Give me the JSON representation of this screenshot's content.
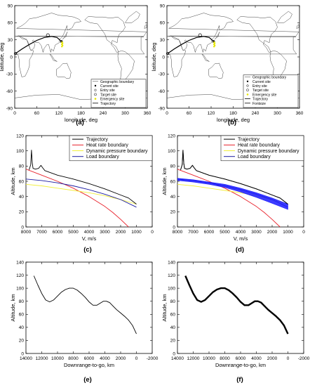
{
  "chart_data": [
    {
      "panel_label": "(a)",
      "type": "map",
      "xlabel": "longitude, deg",
      "ylabel": "latitude, deg",
      "xlim": [
        0,
        360
      ],
      "ylim": [
        -90,
        90
      ],
      "xticks": [
        "0",
        "60",
        "120",
        "180",
        "240",
        "300",
        "360"
      ],
      "yticks": [
        "-90",
        "-60",
        "-30",
        "0",
        "30",
        "60",
        "90"
      ],
      "legend": {
        "position": "bottom-right",
        "entries": [
          "Geographic boundary",
          "Current site",
          "Entry site",
          "Target site",
          "Emergency site",
          "Trajectory"
        ]
      },
      "markers": {
        "entry_site": {
          "x": 2,
          "y": 6
        },
        "target_site": {
          "x": 90,
          "y": 38
        },
        "current_site": {
          "x": 127,
          "y": 27
        },
        "emergency_site": {
          "x": 128,
          "y": 26
        }
      },
      "trajectory": {
        "x": [
          2,
          20,
          40,
          60,
          80,
          100,
          115,
          127
        ],
        "y": [
          6,
          14,
          22,
          29,
          34,
          36,
          34,
          27
        ]
      }
    },
    {
      "panel_label": "(b)",
      "type": "map",
      "xlabel": "longitude, deg",
      "ylabel": "latitude, deg",
      "xlim": [
        0,
        360
      ],
      "ylim": [
        -90,
        90
      ],
      "xticks": [
        "0",
        "60",
        "120",
        "180",
        "240",
        "300",
        "360"
      ],
      "yticks": [
        "-90",
        "-60",
        "-30",
        "0",
        "30",
        "60",
        "90"
      ],
      "legend": {
        "position": "bottom-right",
        "entries": [
          "Geographic boundary",
          "Current site",
          "Entry site",
          "Target site",
          "Emergency site",
          "Trajectory",
          "Fontsize"
        ]
      },
      "markers": {
        "entry_site": {
          "x": 2,
          "y": 6
        },
        "target_site": {
          "x": 90,
          "y": 38
        },
        "current_site": {
          "x": 127,
          "y": 27
        },
        "emergency_site": {
          "x": 128,
          "y": 26
        }
      },
      "trajectory": {
        "x": [
          2,
          20,
          40,
          60,
          80,
          100,
          115,
          127
        ],
        "y": [
          6,
          14,
          22,
          29,
          34,
          36,
          34,
          27
        ]
      }
    },
    {
      "panel_label": "(c)",
      "type": "line",
      "xlabel": "V, m/s",
      "ylabel": "Altitude, km",
      "xlim": [
        8000,
        0
      ],
      "ylim": [
        0,
        120
      ],
      "xticks": [
        "8000",
        "7000",
        "6000",
        "5000",
        "4000",
        "3000",
        "2000",
        "1000",
        "0"
      ],
      "yticks": [
        "0",
        "20",
        "40",
        "60",
        "80",
        "100",
        "120"
      ],
      "legend_position": "top-right",
      "series": [
        {
          "name": "Trajectory",
          "color": "#000000",
          "x": [
            7800,
            7700,
            7650,
            7600,
            7550,
            7400,
            7200,
            7050,
            6950,
            6800,
            6000,
            5000,
            4000,
            3000,
            2000,
            1500,
            1000
          ],
          "y": [
            75,
            82,
            101,
            84,
            77,
            76,
            77,
            81,
            78,
            74,
            68,
            63,
            57,
            50,
            42,
            38,
            30
          ]
        },
        {
          "name": "Heat rate boundary",
          "color": "#e8202a",
          "x": [
            8000,
            7000,
            6000,
            5000,
            4000,
            3000,
            2500,
            2000,
            1500
          ],
          "y": [
            76,
            68,
            60,
            51,
            40,
            27,
            19,
            10,
            0
          ]
        },
        {
          "name": "Dynamic pressure boundary",
          "color": "#f2ef3a",
          "x": [
            8000,
            7000,
            6000,
            5000,
            4000,
            3000,
            2000,
            1000
          ],
          "y": [
            56,
            54,
            51,
            48,
            45,
            41,
            36,
            30
          ]
        },
        {
          "name": "Load boundary",
          "color": "#1a1aa0",
          "x": [
            8000,
            7000,
            6000,
            5000,
            4000,
            3000,
            2000,
            1000
          ],
          "y": [
            63,
            61,
            58,
            54,
            49,
            43,
            36,
            26
          ]
        }
      ]
    },
    {
      "panel_label": "(d)",
      "type": "line",
      "xlabel": "V, m/s",
      "ylabel": "Altitude, km",
      "xlim": [
        8000,
        0
      ],
      "ylim": [
        0,
        120
      ],
      "xticks": [
        "8000",
        "7000",
        "6000",
        "5000",
        "4000",
        "3000",
        "2000",
        "1000",
        "0"
      ],
      "yticks": [
        "0",
        "20",
        "40",
        "60",
        "80",
        "100",
        "120"
      ],
      "legend_position": "top-right",
      "series": [
        {
          "name": "Trajectory",
          "color": "#000000",
          "x": [
            7800,
            7700,
            7650,
            7600,
            7550,
            7400,
            7200,
            7050,
            6950,
            6800,
            6000,
            5000,
            4000,
            3000,
            2000,
            1500,
            1000
          ],
          "y": [
            75,
            82,
            101,
            84,
            77,
            76,
            77,
            81,
            78,
            74,
            68,
            63,
            57,
            50,
            42,
            38,
            30
          ]
        },
        {
          "name": "Heat rate boundary",
          "color": "#e8202a",
          "x": [
            8000,
            7000,
            6000,
            5000,
            4000,
            3000,
            2500,
            2000,
            1500
          ],
          "y": [
            76,
            68,
            60,
            51,
            40,
            27,
            19,
            10,
            0
          ]
        },
        {
          "name": "Dynamic pressure boundary",
          "color": "#f2ef3a",
          "x": [
            8000,
            7000,
            6000,
            5000,
            4000,
            3000,
            2000,
            1000
          ],
          "y": [
            56,
            54,
            51,
            48,
            45,
            41,
            36,
            30
          ]
        },
        {
          "name": "Load boundary",
          "color": "#1a1aa0",
          "x": [
            8000,
            7000,
            6000,
            5000,
            4000,
            3000,
            2000,
            1000
          ],
          "y": [
            63,
            61,
            58,
            54,
            49,
            43,
            36,
            26
          ]
        }
      ],
      "band": {
        "color": "#1a1aff",
        "x": [
          8000,
          7000,
          6000,
          5000,
          4000,
          3000,
          2000,
          1000
        ],
        "y_low": [
          61,
          59,
          56,
          52,
          46,
          39,
          31,
          23
        ],
        "y_high": [
          64,
          62,
          59,
          56,
          51,
          45,
          38,
          30
        ]
      }
    },
    {
      "panel_label": "(e)",
      "type": "line",
      "xlabel": "Downrange-to-go, km",
      "ylabel": "Altitude, km",
      "xlim": [
        14000,
        -2000
      ],
      "ylim": [
        0,
        140
      ],
      "xticks": [
        "14000",
        "12000",
        "10000",
        "8000",
        "6000",
        "4000",
        "2000",
        "0",
        "-2000"
      ],
      "yticks": [
        "0",
        "20",
        "40",
        "60",
        "80",
        "100",
        "120",
        "140"
      ],
      "series": [
        {
          "color": "#000000",
          "x": [
            13000,
            12500,
            12000,
            11500,
            11000,
            10500,
            10000,
            9500,
            9000,
            8500,
            8000,
            7500,
            7000,
            6500,
            6000,
            5500,
            5000,
            4600,
            4200,
            3800,
            3400,
            3000,
            2500,
            2000,
            1500,
            1000,
            500,
            0
          ],
          "y": [
            119,
            105,
            92,
            82,
            79,
            82,
            88,
            94,
            98,
            100,
            100,
            97,
            92,
            86,
            79,
            74,
            74,
            77,
            80,
            80,
            78,
            73,
            67,
            62,
            57,
            51,
            43,
            30
          ]
        }
      ]
    },
    {
      "panel_label": "(f)",
      "type": "line",
      "xlabel": "Downrange-to-go, km",
      "ylabel": "Altitude, km",
      "xlim": [
        14000,
        -2000
      ],
      "ylim": [
        0,
        140
      ],
      "xticks": [
        "14000",
        "12000",
        "10000",
        "8000",
        "6000",
        "4000",
        "2000",
        "0",
        "-2000"
      ],
      "yticks": [
        "0",
        "20",
        "40",
        "60",
        "80",
        "100",
        "120",
        "140"
      ],
      "series": [
        {
          "color": "#000000",
          "x": [
            13000,
            12500,
            12000,
            11500,
            11000,
            10500,
            10000,
            9500,
            9000,
            8500,
            8000,
            7500,
            7000,
            6500,
            6000,
            5500,
            5000,
            4600,
            4200,
            3800,
            3400,
            3000,
            2500,
            2000,
            1500,
            1000,
            500,
            0
          ],
          "y": [
            119,
            105,
            92,
            82,
            79,
            82,
            88,
            94,
            98,
            100,
            100,
            97,
            92,
            86,
            79,
            74,
            74,
            77,
            80,
            80,
            78,
            73,
            67,
            62,
            57,
            51,
            43,
            30
          ]
        }
      ],
      "thick": true
    }
  ]
}
